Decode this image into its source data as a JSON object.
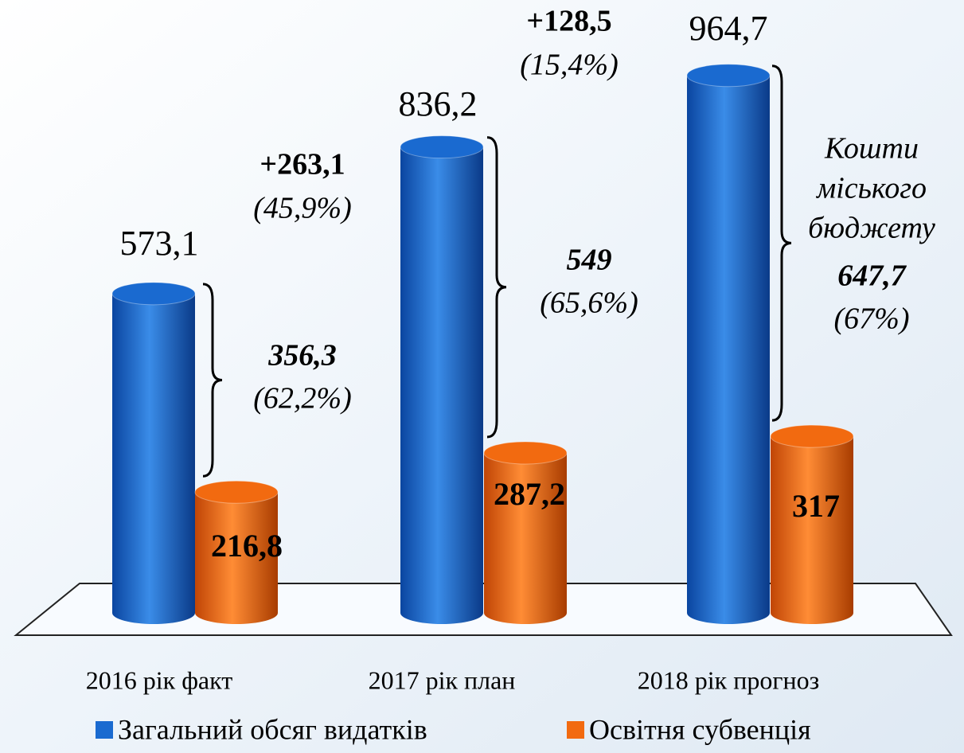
{
  "chart_data": {
    "type": "bar",
    "categories": [
      "2016 рік факт",
      "2017 рік план",
      "2018 рік прогноз"
    ],
    "series": [
      {
        "name": "Загальний обсяг видатків",
        "color": "#1a6ad0",
        "values": [
          573.1,
          836.2,
          964.7
        ],
        "value_labels": [
          "573,1",
          "836,2",
          "964,7"
        ]
      },
      {
        "name": "Освітня субвенція",
        "color": "#f26a10",
        "values": [
          216.8,
          287.2,
          317
        ],
        "value_labels": [
          "216,8",
          "287,2",
          "317"
        ]
      }
    ],
    "annotations": {
      "shares": [
        {
          "value": "356,3",
          "percent": "(62,2%)"
        },
        {
          "value": "549",
          "percent": "(65,6%)"
        },
        {
          "value": "647,7",
          "percent": "(67%)"
        }
      ],
      "city_budget": [
        "Кошти",
        "міського",
        "бюджету"
      ],
      "growth": [
        {
          "value": "+263,1",
          "percent": "(45,9%)"
        },
        {
          "value": "+128,5",
          "percent": "(15,4%)"
        }
      ]
    },
    "legend": "bottom"
  }
}
